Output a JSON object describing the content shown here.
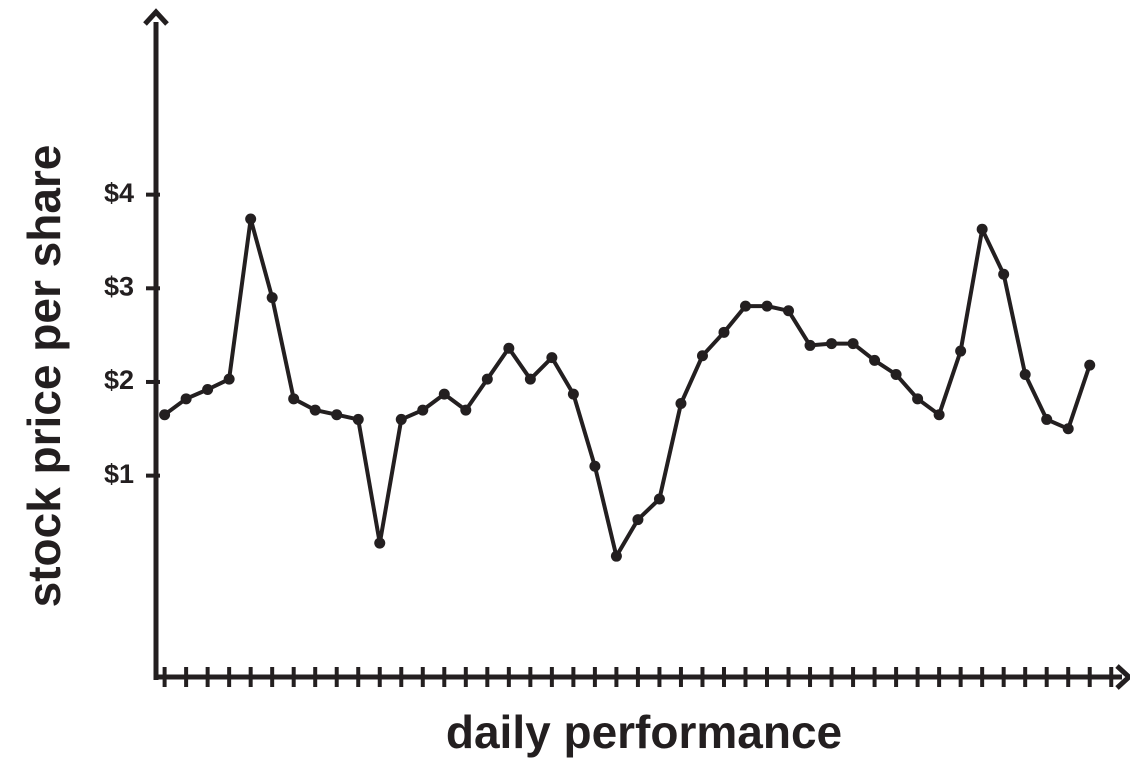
{
  "chart_data": {
    "type": "line",
    "xlabel": "daily performance",
    "ylabel": "stock price per share",
    "y_ticks": [
      {
        "value": 1,
        "label": "$1"
      },
      {
        "value": 2,
        "label": "$2"
      },
      {
        "value": 3,
        "label": "$3"
      },
      {
        "value": 4,
        "label": "$4"
      }
    ],
    "ylim": [
      -1.15,
      5.95
    ],
    "xlim": [
      0.6,
      45.5
    ],
    "x_tick_count": 45,
    "grid": false,
    "legend": "none",
    "markers": true,
    "line_color": "#231f20",
    "series": [
      {
        "x": [
          1,
          2,
          3,
          4,
          5,
          6,
          7,
          8,
          9,
          10,
          11,
          12,
          13,
          14,
          15,
          16,
          17,
          18,
          19,
          20,
          21,
          22,
          23,
          24,
          25,
          26,
          27,
          28,
          29,
          30,
          31,
          32,
          33,
          34,
          35,
          36,
          37,
          38,
          39,
          40,
          41,
          42,
          43,
          44,
          45
        ],
        "values": [
          1.65,
          1.82,
          1.92,
          2.03,
          3.74,
          2.9,
          1.82,
          1.7,
          1.65,
          1.6,
          0.28,
          1.6,
          1.7,
          1.87,
          1.7,
          2.03,
          2.36,
          2.03,
          2.26,
          1.87,
          1.1,
          0.14,
          0.53,
          0.75,
          1.77,
          2.28,
          2.53,
          2.81,
          2.81,
          2.76,
          2.39,
          2.41,
          2.41,
          2.23,
          2.08,
          1.82,
          1.65,
          2.33,
          3.63,
          3.15,
          2.08,
          1.6,
          1.5,
          2.18,
          null
        ]
      }
    ]
  }
}
